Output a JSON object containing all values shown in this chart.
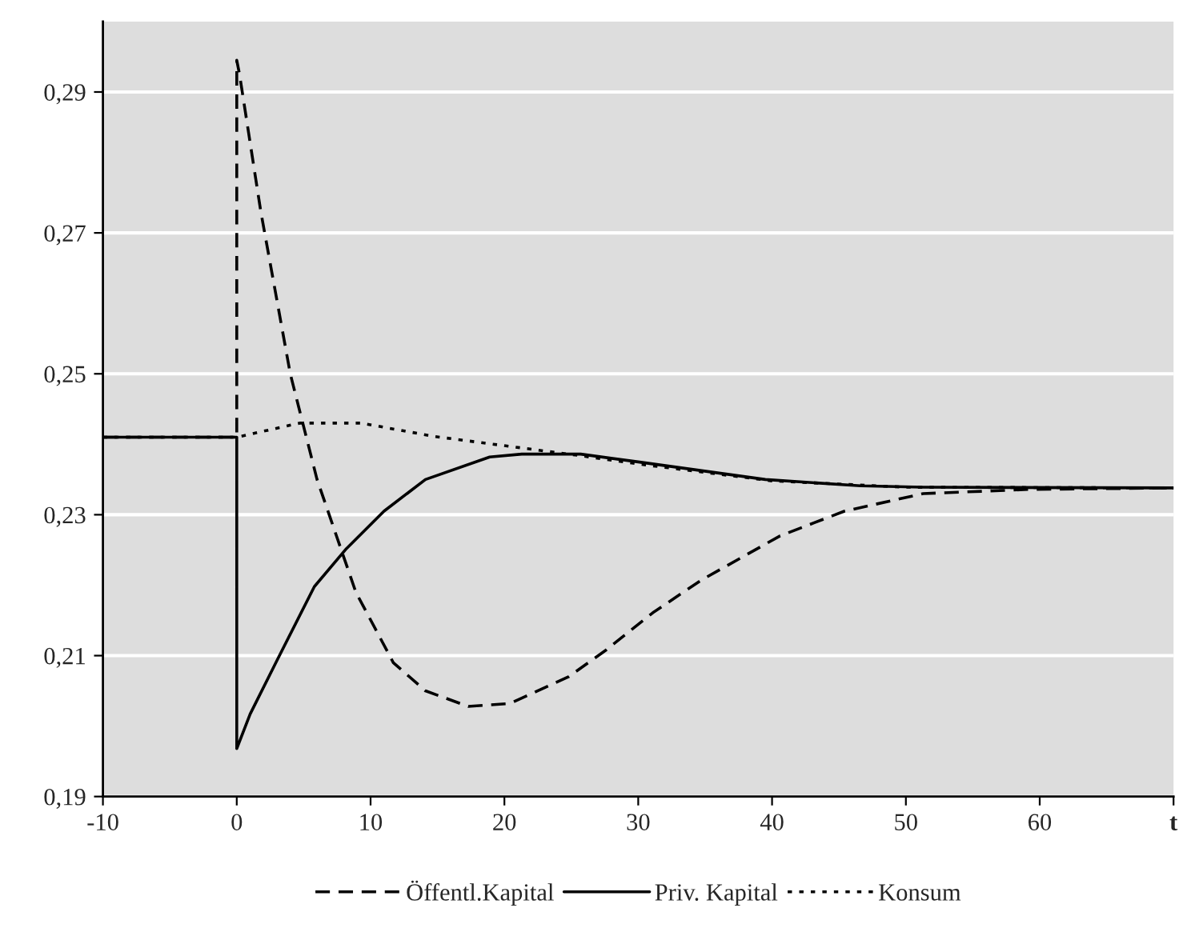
{
  "chart_data": {
    "type": "line",
    "xlim": [
      -10,
      70
    ],
    "ylim": [
      0.19,
      0.3
    ],
    "xticks": [
      -10,
      0,
      10,
      20,
      30,
      40,
      50,
      60,
      {
        "value": 70,
        "label": "t"
      }
    ],
    "yticks": [
      {
        "value": 0.19,
        "label": "0,19"
      },
      {
        "value": 0.21,
        "label": "0,21"
      },
      {
        "value": 0.23,
        "label": "0,23"
      },
      {
        "value": 0.25,
        "label": "0,25"
      },
      {
        "value": 0.27,
        "label": "0,27"
      },
      {
        "value": 0.29,
        "label": "0,29"
      }
    ],
    "grid": "y",
    "legend": "bottom",
    "series": [
      {
        "name": "Öffentl.Kapital",
        "color": "#000000",
        "line_style": "dashed",
        "x": [
          -10,
          0,
          0,
          0.2,
          1.8,
          4,
          6,
          8.9,
          11.7,
          14.1,
          17.3,
          20.4,
          24.8,
          27.6,
          31.1,
          34.7,
          40.6,
          45.4,
          51.3,
          59.3,
          70
        ],
        "values": [
          0.241,
          0.241,
          0.2945,
          0.2926,
          0.273,
          0.25,
          0.235,
          0.219,
          0.209,
          0.205,
          0.2028,
          0.2032,
          0.207,
          0.2108,
          0.2161,
          0.2207,
          0.227,
          0.2305,
          0.233,
          0.2336,
          0.2338
        ]
      },
      {
        "name": "Priv. Kapital",
        "color": "#000000",
        "line_style": "solid",
        "x": [
          -10,
          0,
          0,
          1,
          3,
          5.8,
          8.2,
          11,
          14.1,
          18.9,
          21.3,
          25.7,
          30,
          39.5,
          46.6,
          51.3,
          70
        ],
        "values": [
          0.241,
          0.241,
          0.1968,
          0.2017,
          0.2093,
          0.2198,
          0.2252,
          0.2305,
          0.235,
          0.2382,
          0.2386,
          0.2386,
          0.2375,
          0.235,
          0.2341,
          0.2339,
          0.2338
        ]
      },
      {
        "name": "Konsum",
        "color": "#000000",
        "line_style": "dotted",
        "x": [
          -10,
          0,
          4.7,
          9.3,
          14.8,
          20.8,
          25.6,
          30,
          40,
          50,
          70
        ],
        "values": [
          0.241,
          0.241,
          0.243,
          0.243,
          0.2411,
          0.2396,
          0.2384,
          0.2372,
          0.2348,
          0.2339,
          0.2338
        ]
      }
    ]
  }
}
